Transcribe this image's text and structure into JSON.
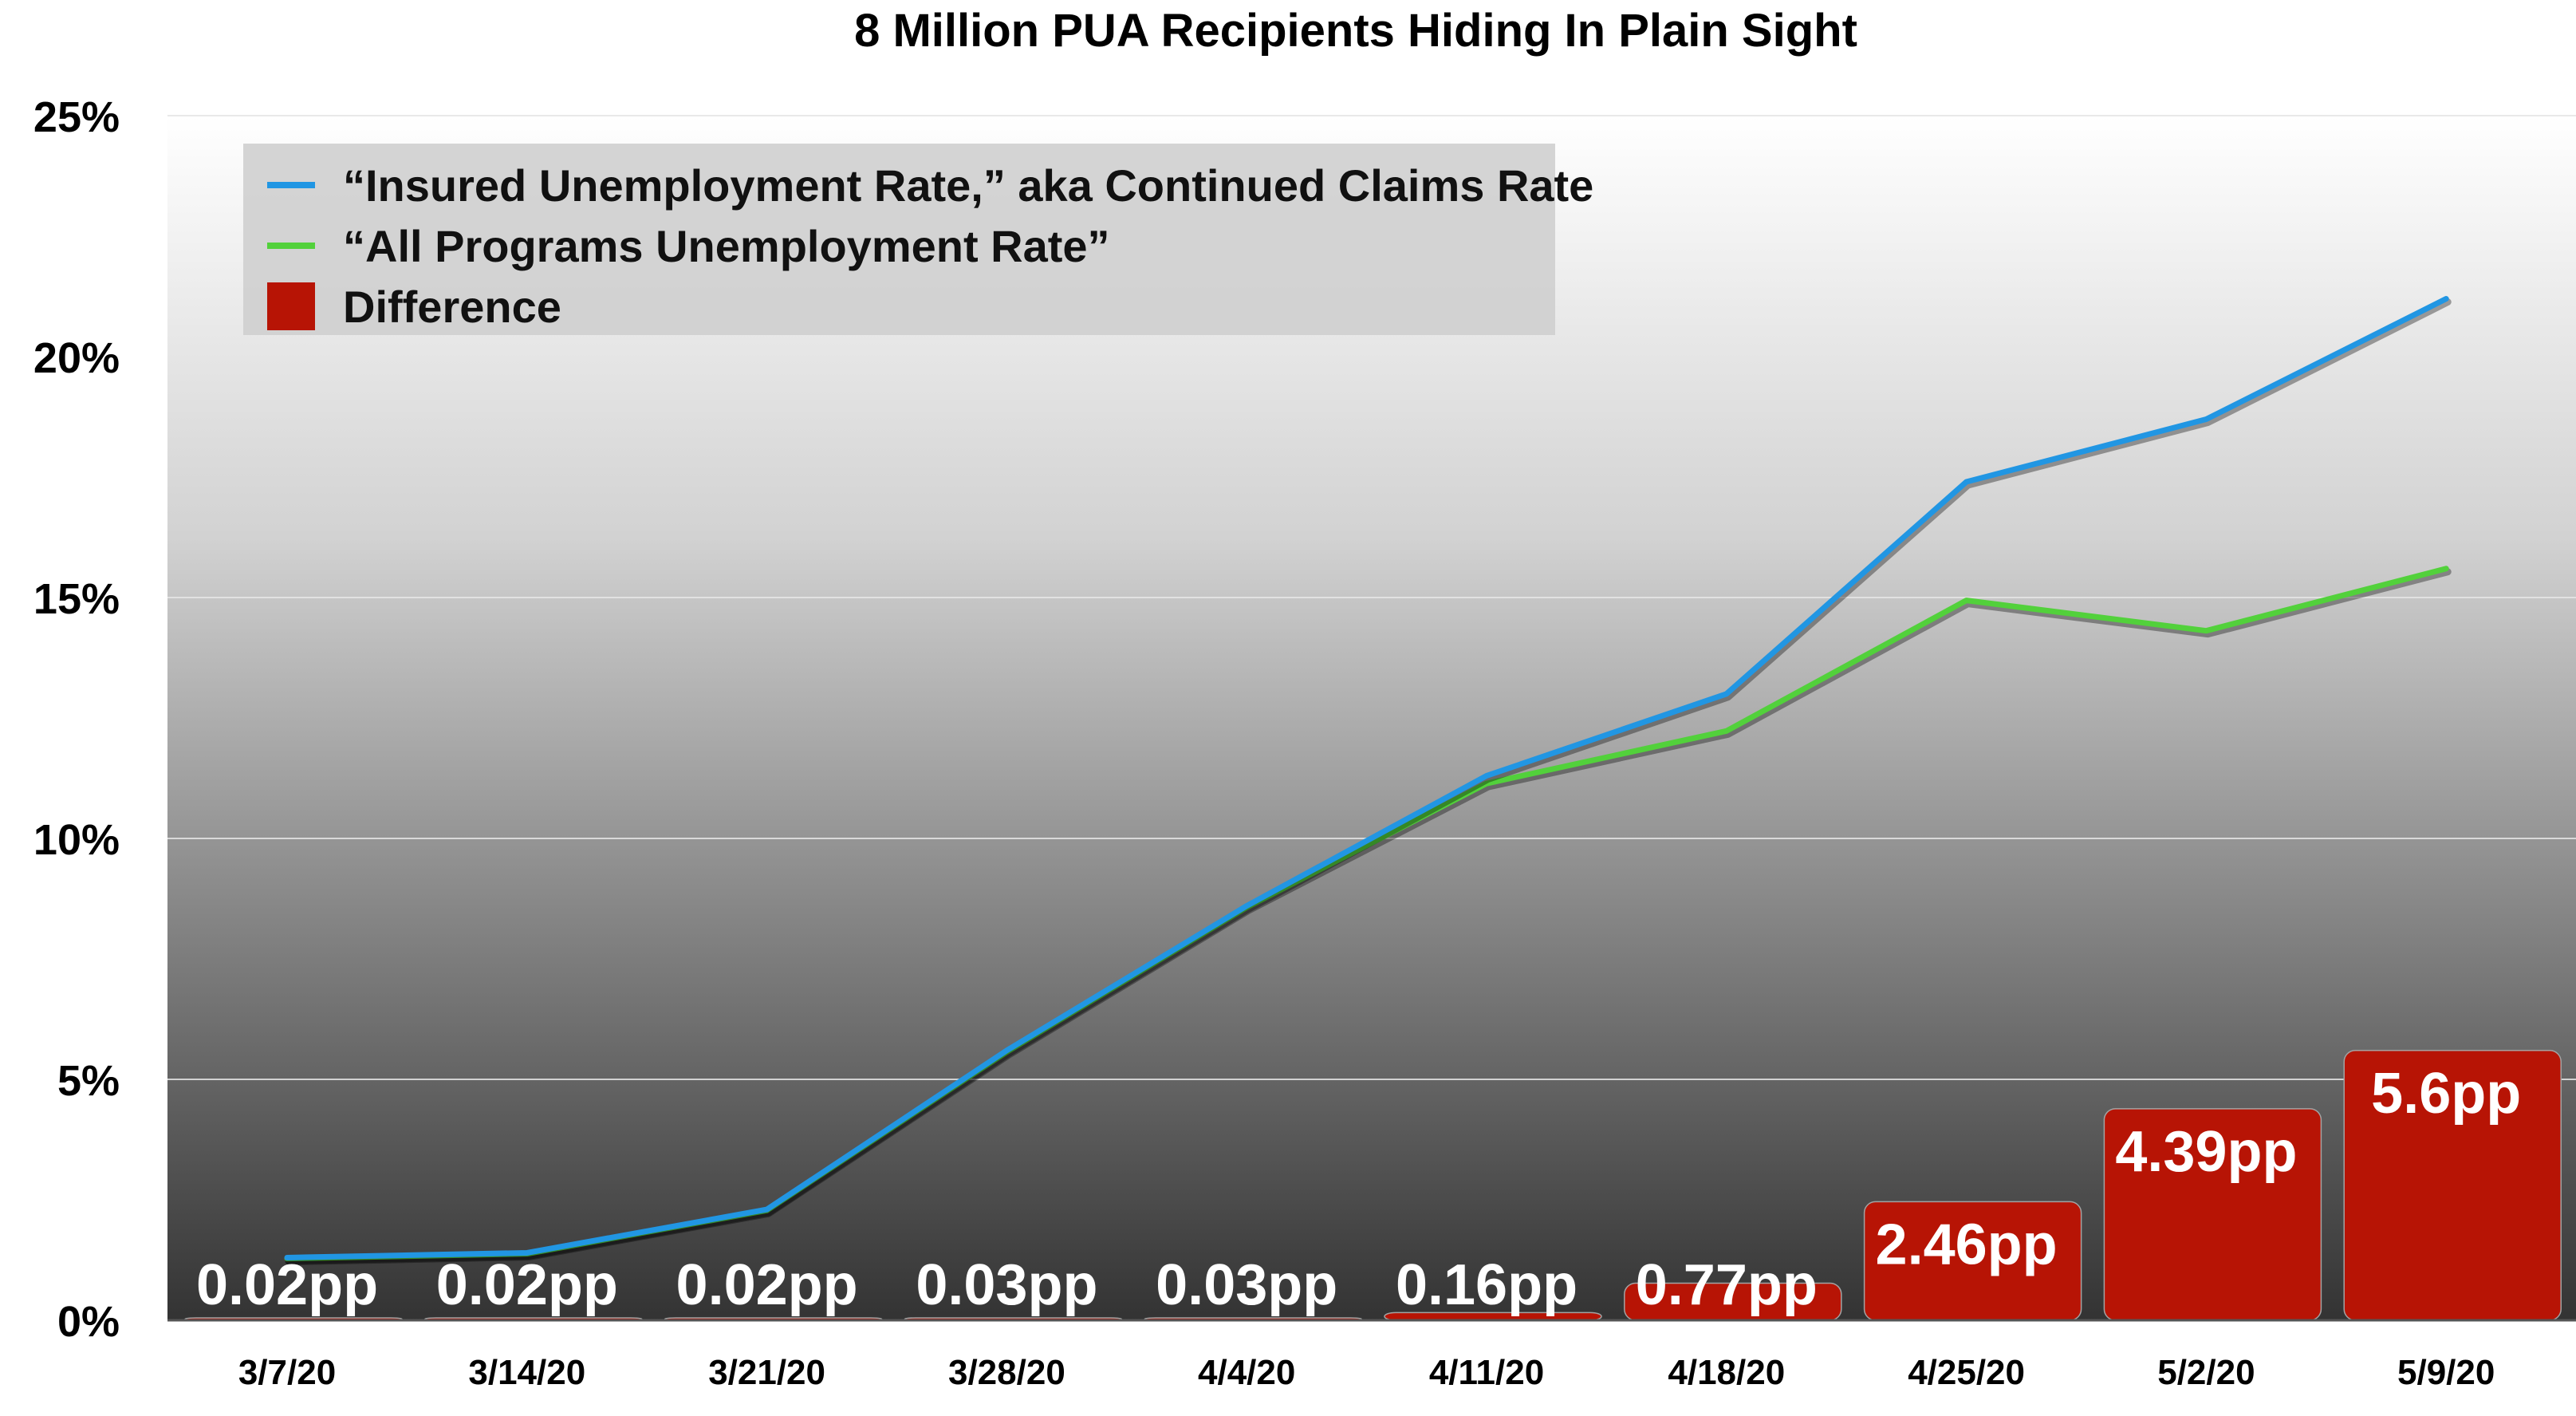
{
  "chart_data": {
    "type": "line",
    "title": "8 Million PUA Recipients Hiding In Plain Sight",
    "categories": [
      "3/7/20",
      "3/14/20",
      "3/21/20",
      "3/28/20",
      "4/4/20",
      "4/11/20",
      "4/18/20",
      "4/25/20",
      "5/2/20",
      "5/9/20"
    ],
    "ylim": [
      0,
      25
    ],
    "yticks": [
      "0%",
      "5%",
      "10%",
      "15%",
      "20%",
      "25%"
    ],
    "grid": true,
    "legend_position": "top-left",
    "series": [
      {
        "name": "“Insured Unemployment Rate,” aka Continued Claims Rate",
        "kind": "line",
        "color": "#2196e3",
        "values": [
          1.3,
          1.4,
          2.3,
          5.6,
          8.6,
          11.3,
          13.0,
          17.4,
          18.7,
          21.2
        ]
      },
      {
        "name": "“All Programs Unemployment Rate”",
        "kind": "line",
        "color": "#52d13b",
        "values": [
          1.28,
          1.38,
          2.28,
          5.57,
          8.57,
          11.14,
          12.23,
          14.94,
          14.31,
          15.6
        ]
      },
      {
        "name": "Difference",
        "kind": "bar",
        "color": "#b71405",
        "values": [
          0.02,
          0.02,
          0.02,
          0.03,
          0.03,
          0.16,
          0.77,
          2.46,
          4.39,
          5.6
        ],
        "labels": [
          "0.02pp",
          "0.02pp",
          "0.02pp",
          "0.03pp",
          "0.03pp",
          "0.16pp",
          "0.77pp",
          "2.46pp",
          "4.39pp",
          "5.6pp"
        ]
      }
    ]
  }
}
